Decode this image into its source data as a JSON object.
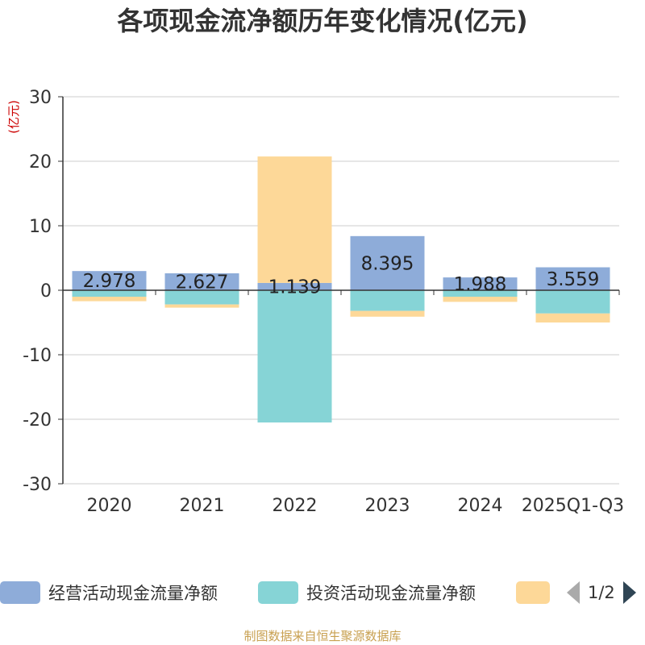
{
  "title": "各项现金流净额历年变化情况(亿元)",
  "source_text": "制图数据来自恒生聚源数据库",
  "legend": {
    "items": [
      {
        "label": "经营活动现金流量净额",
        "color": "#8eacd9"
      },
      {
        "label": "投资活动现金流量净额",
        "color": "#86d4d6"
      },
      {
        "label": "",
        "color": "#fdd898"
      }
    ],
    "page_text": "1/2"
  },
  "chart_data": {
    "type": "bar",
    "stacked": true,
    "title": "各项现金流净额历年变化情况(亿元)",
    "ylabel": "(亿元)",
    "ylim": [
      -30,
      30
    ],
    "yticks": [
      30,
      20,
      10,
      0,
      -10,
      -20,
      -30
    ],
    "categories": [
      "2020",
      "2021",
      "2022",
      "2023",
      "2024",
      "2025Q1-Q3"
    ],
    "series": [
      {
        "name": "经营活动现金流量净额",
        "color": "#8eacd9",
        "values": [
          2.978,
          2.627,
          1.139,
          8.395,
          1.988,
          3.559
        ],
        "labels": [
          "2.978",
          "2.627",
          "1.139",
          "8.395",
          "1.988",
          "3.559"
        ]
      },
      {
        "name": "投资活动现金流量净额",
        "color": "#86d4d6",
        "values": [
          -1.0,
          -2.2,
          -20.5,
          -3.2,
          -1.0,
          -3.6
        ]
      },
      {
        "name": "",
        "color": "#fdd898",
        "values": [
          -0.7,
          -0.5,
          19.6,
          -0.9,
          -0.8,
          -1.4
        ]
      }
    ]
  }
}
